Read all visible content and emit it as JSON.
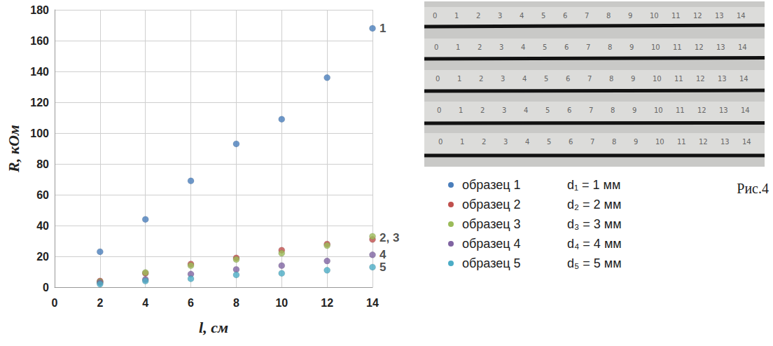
{
  "chart_data": {
    "type": "scatter",
    "x_label": "l, см",
    "y_label": "R, кОм",
    "x": [
      2,
      4,
      6,
      8,
      10,
      12,
      14
    ],
    "series": [
      {
        "name": "образец 1",
        "color": "#4a7ebb",
        "values": [
          23,
          44,
          69,
          93,
          109,
          136,
          168
        ]
      },
      {
        "name": "образец 2",
        "color": "#c0504d",
        "values": [
          4,
          9,
          15,
          19,
          24,
          28,
          31
        ]
      },
      {
        "name": "образец 3",
        "color": "#9bbb59",
        "values": [
          3.5,
          9.5,
          14,
          18,
          22,
          27,
          33
        ]
      },
      {
        "name": "образец 4",
        "color": "#8064a2",
        "values": [
          3,
          5,
          8.5,
          11.5,
          14,
          17,
          21
        ]
      },
      {
        "name": "образец 5",
        "color": "#4bacc6",
        "values": [
          2,
          4,
          5.5,
          8,
          9,
          11,
          13
        ]
      }
    ],
    "annotations": [
      {
        "text": "1",
        "x": 14,
        "y": 168
      },
      {
        "text": "2, 3",
        "x": 14,
        "y": 32
      },
      {
        "text": "4",
        "x": 14,
        "y": 21
      },
      {
        "text": "5",
        "x": 14,
        "y": 13
      }
    ],
    "xlim": [
      0,
      14
    ],
    "xticks": [
      0,
      2,
      4,
      6,
      8,
      10,
      12,
      14
    ],
    "ylim": [
      0,
      180
    ],
    "yticks": [
      0,
      20,
      40,
      60,
      80,
      100,
      120,
      140,
      160,
      180
    ],
    "grid": true,
    "marker": "circle"
  },
  "side_notes": [
    "d₁ = 1 мм",
    "d₂ = 2 мм",
    "d₃ = 3 мм",
    "d₄ = 4 мм",
    "d₅ = 5 мм"
  ],
  "figure_label": "Рис.4",
  "photo": {
    "ruler_labels": [
      "0",
      "1",
      "2",
      "3",
      "4",
      "5",
      "6",
      "7",
      "8",
      "9",
      "10",
      "11",
      "12",
      "13",
      "14"
    ]
  }
}
